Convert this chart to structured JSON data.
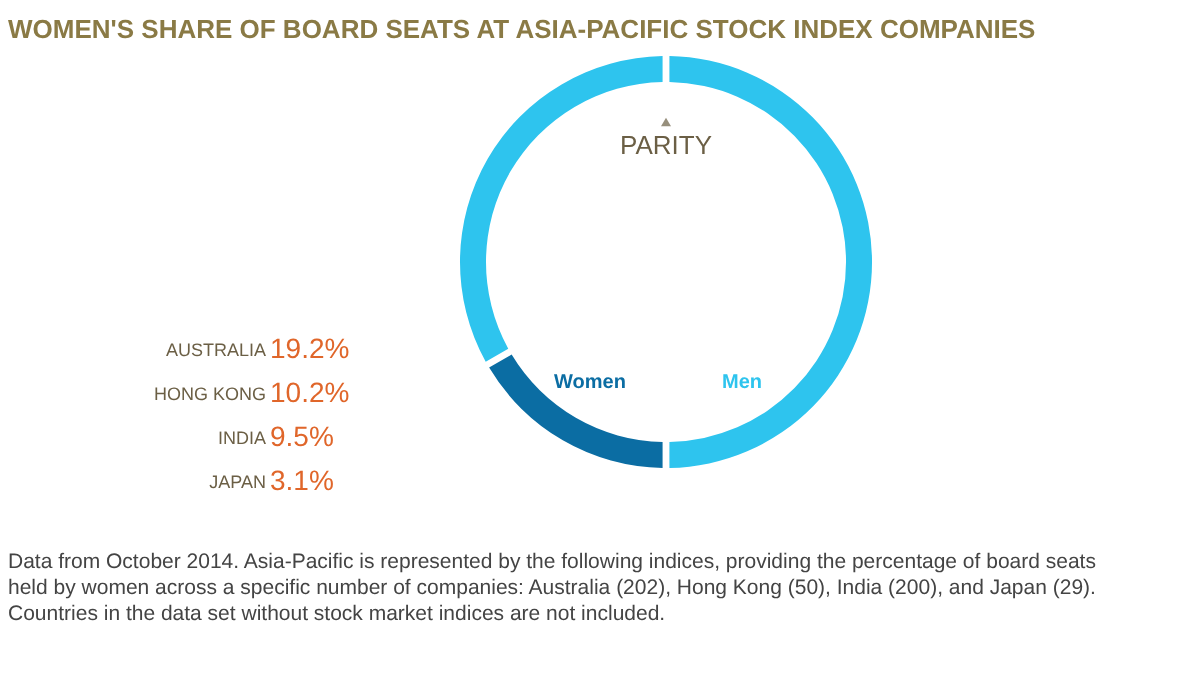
{
  "chart_data": {
    "type": "donut",
    "title": "WOMEN'S SHARE OF BOARD SEATS AT ASIA-PACIFIC STOCK INDEX COMPANIES",
    "categories": [
      "Men",
      "Women",
      null
    ],
    "values": [
      50,
      16.7,
      33.3
    ],
    "colors": [
      "#2ec4ee",
      "#0b6da3",
      "#2ec4ee"
    ],
    "legend": false,
    "annotations": [
      "PARITY",
      "AUSTRALIA",
      "19.2%",
      "HONG KONG",
      "10.2%",
      "INDIA",
      "9.5%",
      "JAPAN",
      "3.1%",
      "Data from October 2014. Asia-Pacific is represented by the following indices, providing the percentage of board seats held by women across a specific number of companies: Australia (202), Hong Kong (50), India (200), and Japan (29). Countries in the data set without stock market indices are not included."
    ]
  }
}
